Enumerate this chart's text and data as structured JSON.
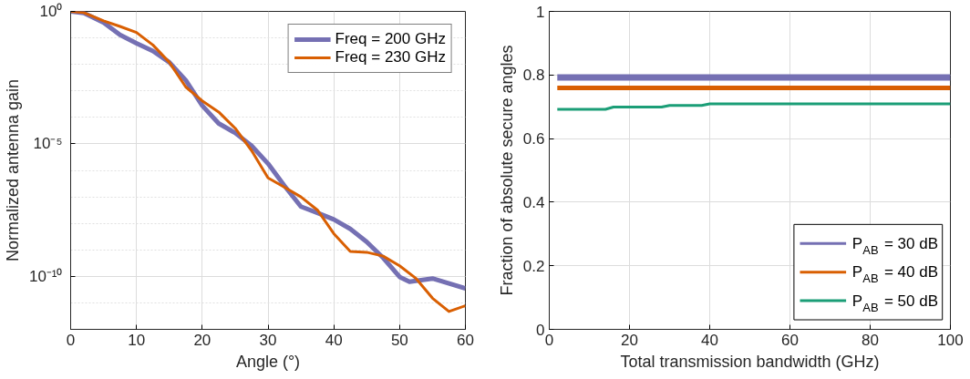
{
  "chart_data": [
    {
      "type": "line",
      "xlabel": "Angle (°)",
      "ylabel": "Normalized antenna gain",
      "log": "y",
      "xlim": [
        0,
        60
      ],
      "ylim": [
        1e-12,
        1
      ],
      "xticks": [
        0,
        10,
        20,
        30,
        40,
        50,
        60
      ],
      "yticks": [
        {
          "value": 1,
          "label": "10⁰"
        },
        {
          "value": 1e-05,
          "label": "10⁻⁵"
        },
        {
          "value": 1e-10,
          "label": "10⁻¹⁰"
        }
      ],
      "grid": true,
      "legend": "top right",
      "line_style": "solid",
      "marker": "none",
      "series": [
        {
          "name": "Freq = 200 GHz",
          "color": "#7570b3",
          "x": [
            0,
            2,
            5,
            7.5,
            10,
            12.5,
            15,
            17.5,
            20,
            22.5,
            25,
            27.5,
            30,
            32.5,
            35,
            37.5,
            40,
            42.5,
            45,
            47.5,
            50,
            51.5,
            55,
            60
          ],
          "values": [
            1,
            0.87,
            0.38,
            0.13,
            0.063,
            0.032,
            0.012,
            0.0025,
            0.00028,
            5.9e-05,
            2.6e-05,
            8.5e-06,
            1.8e-06,
            2.6e-07,
            4.3e-08,
            2.5e-08,
            1.4e-08,
            6.2e-09,
            2e-09,
            5e-10,
            9.5e-11,
            6.3e-11,
            8.3e-11,
            3.5e-11
          ]
        },
        {
          "name": "Freq = 230 GHz",
          "color": "#d95f02",
          "x": [
            0,
            2,
            5,
            7.5,
            10,
            12.5,
            15,
            17.5,
            20,
            22.5,
            25,
            27.5,
            30,
            32.5,
            35,
            37.5,
            40,
            42.5,
            45,
            47.5,
            50,
            52.5,
            55,
            57.5,
            60
          ],
          "values": [
            1,
            0.9,
            0.44,
            0.27,
            0.16,
            0.054,
            0.012,
            0.0014,
            0.00042,
            0.00016,
            3.9e-05,
            5.6e-06,
            5.2e-07,
            2.3e-07,
            1e-07,
            3.2e-08,
            4.1e-09,
            8.7e-10,
            8.1e-10,
            5.8e-10,
            2.5e-10,
            8.3e-11,
            1.5e-11,
            4.7e-12,
            7.8e-12
          ]
        }
      ]
    },
    {
      "type": "line",
      "xlabel": "Total transmission bandwidth (GHz)",
      "ylabel": "Fraction of absolute secure angles",
      "xlim": [
        0,
        100
      ],
      "ylim": [
        0,
        1
      ],
      "xticks": [
        0,
        20,
        40,
        60,
        80,
        100
      ],
      "yticks": [
        0,
        0.2,
        0.4,
        0.6,
        0.8,
        1
      ],
      "grid": true,
      "legend": "bottom right",
      "line_style": "solid",
      "marker": "none",
      "series": [
        {
          "name": "P$_{AB}$ = 30 dB",
          "color": "#7570b3",
          "x": [
            2,
            100
          ],
          "values": [
            0.792,
            0.792
          ]
        },
        {
          "name": "P$_{AB}$ = 40 dB",
          "color": "#d95f02",
          "x": [
            2,
            100
          ],
          "values": [
            0.759,
            0.759
          ]
        },
        {
          "name": "P$_{AB}$ = 50 dB",
          "color": "#1b9e77",
          "x": [
            2,
            14,
            16,
            28,
            30,
            38,
            40,
            100
          ],
          "values": [
            0.692,
            0.692,
            0.699,
            0.699,
            0.704,
            0.704,
            0.709,
            0.709
          ]
        }
      ]
    }
  ]
}
